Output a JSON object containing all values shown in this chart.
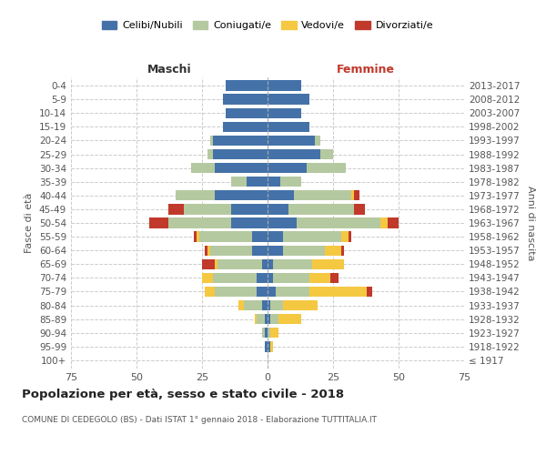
{
  "age_groups": [
    "100+",
    "95-99",
    "90-94",
    "85-89",
    "80-84",
    "75-79",
    "70-74",
    "65-69",
    "60-64",
    "55-59",
    "50-54",
    "45-49",
    "40-44",
    "35-39",
    "30-34",
    "25-29",
    "20-24",
    "15-19",
    "10-14",
    "5-9",
    "0-4"
  ],
  "birth_years": [
    "≤ 1917",
    "1918-1922",
    "1923-1927",
    "1928-1932",
    "1933-1937",
    "1938-1942",
    "1943-1947",
    "1948-1952",
    "1953-1957",
    "1958-1962",
    "1963-1967",
    "1968-1972",
    "1973-1977",
    "1978-1982",
    "1983-1987",
    "1988-1992",
    "1993-1997",
    "1998-2002",
    "2003-2007",
    "2008-2012",
    "2013-2017"
  ],
  "male": {
    "celibi": [
      0,
      1,
      1,
      1,
      2,
      4,
      4,
      2,
      6,
      6,
      14,
      14,
      20,
      8,
      20,
      21,
      21,
      17,
      16,
      17,
      16
    ],
    "coniugati": [
      0,
      0,
      1,
      3,
      7,
      16,
      17,
      17,
      16,
      20,
      24,
      18,
      15,
      6,
      9,
      2,
      1,
      0,
      0,
      0,
      0
    ],
    "vedovi": [
      0,
      0,
      0,
      1,
      2,
      4,
      4,
      1,
      1,
      1,
      0,
      0,
      0,
      0,
      0,
      0,
      0,
      0,
      0,
      0,
      0
    ],
    "divorziati": [
      0,
      0,
      0,
      0,
      0,
      0,
      0,
      5,
      1,
      1,
      7,
      6,
      0,
      0,
      0,
      0,
      0,
      0,
      0,
      0,
      0
    ]
  },
  "female": {
    "nubili": [
      0,
      1,
      0,
      1,
      1,
      3,
      2,
      2,
      6,
      6,
      11,
      8,
      10,
      5,
      15,
      20,
      18,
      16,
      13,
      16,
      13
    ],
    "coniugate": [
      0,
      0,
      1,
      3,
      5,
      13,
      14,
      15,
      16,
      22,
      32,
      25,
      22,
      8,
      15,
      5,
      2,
      0,
      0,
      0,
      0
    ],
    "vedove": [
      0,
      1,
      3,
      9,
      13,
      22,
      8,
      12,
      6,
      3,
      3,
      0,
      1,
      0,
      0,
      0,
      0,
      0,
      0,
      0,
      0
    ],
    "divorziate": [
      0,
      0,
      0,
      0,
      0,
      2,
      3,
      0,
      1,
      1,
      4,
      4,
      2,
      0,
      0,
      0,
      0,
      0,
      0,
      0,
      0
    ]
  },
  "colors": {
    "celibi": "#4472a8",
    "coniugati": "#b5c9a0",
    "vedovi": "#f5c842",
    "divorziati": "#c0392b"
  },
  "xlim": 75,
  "title": "Popolazione per età, sesso e stato civile - 2018",
  "subtitle": "COMUNE DI CEDEGOLO (BS) - Dati ISTAT 1° gennaio 2018 - Elaborazione TUTTITALIA.IT",
  "xlabel_left": "Maschi",
  "xlabel_right": "Femmine",
  "ylabel": "Fasce di età",
  "ylabel_right": "Anni di nascita",
  "legend_labels": [
    "Celibi/Nubili",
    "Coniugati/e",
    "Vedovi/e",
    "Divorziati/e"
  ]
}
